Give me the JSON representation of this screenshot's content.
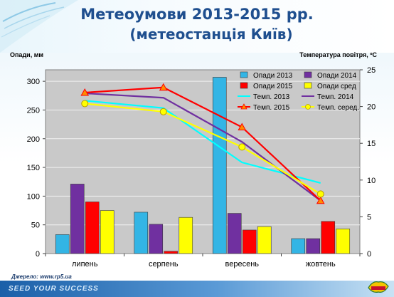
{
  "header": {
    "title_line1": "Метеоумови 2013-2015 рр.",
    "title_line2": "(метеостанція Київ)"
  },
  "axes": {
    "left_label": "Опади, мм",
    "right_label": "Температура повітря, ºС"
  },
  "footer": {
    "source": "Джерело: www.rp5.ua",
    "slogan": "SEED YOUR SUCCESS",
    "brand": "DEKALB"
  },
  "colors": {
    "plot_bg": "#c9c9c9",
    "opady_2013": "#33b5e5",
    "opady_2014": "#7030a0",
    "opady_2015": "#ff0000",
    "opady_sred": "#ffff00",
    "temp_2013": "#00ffff",
    "temp_2014": "#7030a0",
    "temp_2015": "#ff0000",
    "temp_sred": "#ffff00"
  },
  "chart_data": {
    "type": "bar",
    "categories": [
      "липень",
      "серпень",
      "вересень",
      "жовтень"
    ],
    "ylim_left": [
      0,
      320
    ],
    "yticks_left": [
      0,
      50,
      100,
      150,
      200,
      250,
      300
    ],
    "ylim_right": [
      0,
      25
    ],
    "yticks_right": [
      0,
      5,
      10,
      15,
      20,
      25
    ],
    "grid": true,
    "legend_position": "top-right",
    "series": [
      {
        "name": "Опади 2013",
        "type": "bar",
        "axis": "left",
        "color": "#33b5e5",
        "values": [
          33,
          72,
          307,
          26
        ]
      },
      {
        "name": "Опади 2014",
        "type": "bar",
        "axis": "left",
        "color": "#7030a0",
        "values": [
          121,
          51,
          70,
          26
        ]
      },
      {
        "name": "Опади 2015",
        "type": "bar",
        "axis": "left",
        "color": "#ff0000",
        "values": [
          90,
          4,
          41,
          56
        ]
      },
      {
        "name": "Опади сред",
        "type": "bar",
        "axis": "left",
        "color": "#ffff00",
        "values": [
          75,
          63,
          47,
          43
        ]
      },
      {
        "name": "Темп. 2013",
        "type": "line",
        "axis": "right",
        "color": "#00ffff",
        "marker": "none",
        "values": [
          20.8,
          19.8,
          12.4,
          9.6
        ]
      },
      {
        "name": "Темп. 2014",
        "type": "line",
        "axis": "right",
        "color": "#7030a0",
        "marker": "none",
        "values": [
          21.8,
          21.2,
          15.2,
          7.2
        ]
      },
      {
        "name": "Темп. 2015",
        "type": "line",
        "axis": "right",
        "color": "#ff0000",
        "marker": "triangle",
        "values": [
          21.9,
          22.6,
          17.2,
          7.2
        ]
      },
      {
        "name": "Темп. серед.",
        "type": "line",
        "axis": "right",
        "color": "#ffff00",
        "marker": "circle",
        "values": [
          20.4,
          19.3,
          14.5,
          8.1
        ]
      }
    ]
  }
}
